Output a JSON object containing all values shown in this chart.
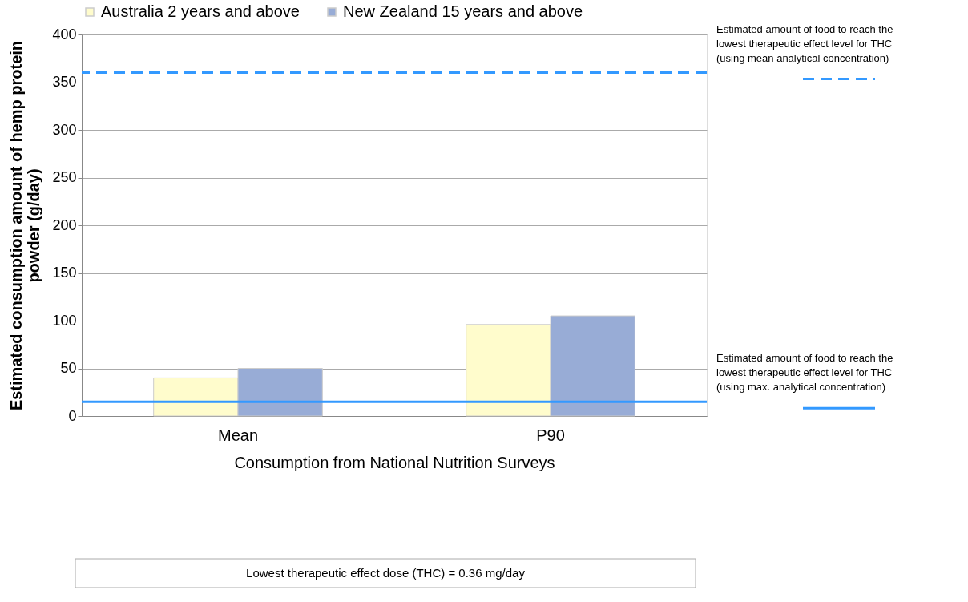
{
  "chart_data": {
    "type": "bar",
    "xlabel": "Consumption from National Nutrition Surveys",
    "ylabel": "Estimated consumption amount of hemp protein powder (g/day)",
    "categories": [
      "Mean",
      "P90"
    ],
    "series": [
      {
        "name": "Australia 2 years and above",
        "color": "#fffccc",
        "values": [
          40,
          96
        ]
      },
      {
        "name": "New Zealand 15 years and above",
        "color": "#98acd6",
        "values": [
          50,
          105
        ]
      }
    ],
    "ylim": [
      0,
      400
    ],
    "yticks": [
      0,
      50,
      100,
      150,
      200,
      250,
      300,
      350,
      400
    ],
    "grid": "y",
    "legend": "top",
    "ref_lines": [
      {
        "axis": "y",
        "value": 360,
        "label": "Estimated amount of food to reach the lowest therapeutic effect level for THC (using mean analytical concentration)",
        "color": "#3399ff",
        "line_style": "dashed"
      },
      {
        "axis": "y",
        "value": 15,
        "label": "Estimated amount of food to reach the lowest therapeutic effect level for THC (using max. analytical concentration)",
        "color": "#3399ff",
        "line_style": "solid"
      }
    ],
    "annotations": [
      "Lowest therapeutic effect dose (THC) = 0.36 mg/day"
    ]
  }
}
